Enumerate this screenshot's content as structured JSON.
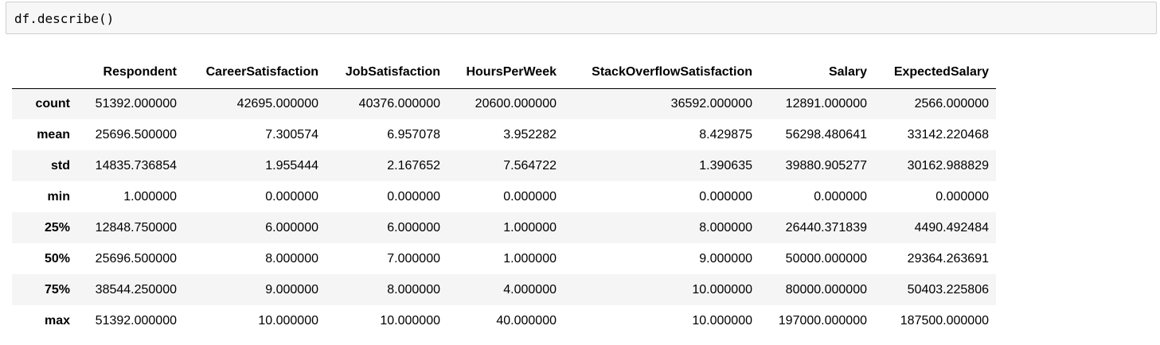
{
  "cell": {
    "code": "df.describe()"
  },
  "table": {
    "columns": [
      "",
      "Respondent",
      "CareerSatisfaction",
      "JobSatisfaction",
      "HoursPerWeek",
      "StackOverflowSatisfaction",
      "Salary",
      "ExpectedSalary"
    ],
    "rows": [
      {
        "label": "count",
        "values": [
          "51392.000000",
          "42695.000000",
          "40376.000000",
          "20600.000000",
          "36592.000000",
          "12891.000000",
          "2566.000000"
        ]
      },
      {
        "label": "mean",
        "values": [
          "25696.500000",
          "7.300574",
          "6.957078",
          "3.952282",
          "8.429875",
          "56298.480641",
          "33142.220468"
        ]
      },
      {
        "label": "std",
        "values": [
          "14835.736854",
          "1.955444",
          "2.167652",
          "7.564722",
          "1.390635",
          "39880.905277",
          "30162.988829"
        ]
      },
      {
        "label": "min",
        "values": [
          "1.000000",
          "0.000000",
          "0.000000",
          "0.000000",
          "0.000000",
          "0.000000",
          "0.000000"
        ]
      },
      {
        "label": "25%",
        "values": [
          "12848.750000",
          "6.000000",
          "6.000000",
          "1.000000",
          "8.000000",
          "26440.371839",
          "4490.492484"
        ]
      },
      {
        "label": "50%",
        "values": [
          "25696.500000",
          "8.000000",
          "7.000000",
          "1.000000",
          "9.000000",
          "50000.000000",
          "29364.263691"
        ]
      },
      {
        "label": "75%",
        "values": [
          "38544.250000",
          "9.000000",
          "8.000000",
          "4.000000",
          "10.000000",
          "80000.000000",
          "50403.225806"
        ]
      },
      {
        "label": "max",
        "values": [
          "51392.000000",
          "10.000000",
          "10.000000",
          "40.000000",
          "10.000000",
          "197000.000000",
          "187500.000000"
        ]
      }
    ]
  }
}
